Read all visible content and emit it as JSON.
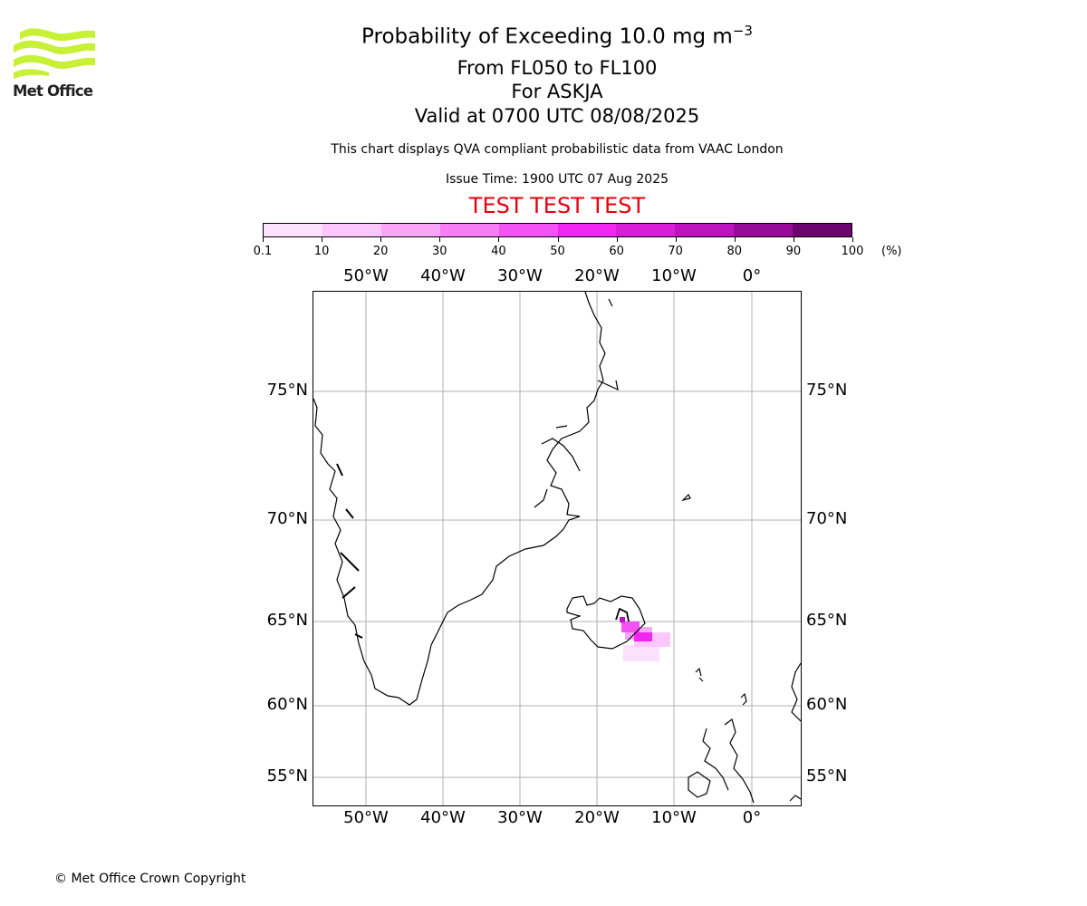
{
  "logo": {
    "text": "Met Office",
    "color": "#c6f135"
  },
  "header": {
    "title_main": "Probability of Exceeding 10.0 mg m",
    "title_exp": "−3",
    "flight_levels": "From FL050 to FL100",
    "volcano": "For ASKJA",
    "valid": "Valid at 0700 UTC 08/08/2025",
    "info": "This chart displays QVA compliant probabilistic data from VAAC London",
    "issue": "Issue Time: 1900 UTC 07 Aug 2025",
    "test_banner": "TEST TEST TEST"
  },
  "colorbar": {
    "ticks": [
      "0.1",
      "10",
      "20",
      "30",
      "40",
      "50",
      "60",
      "70",
      "80",
      "90",
      "100"
    ],
    "unit": "(%)",
    "colors": [
      "#fde0fd",
      "#fbc6fb",
      "#f9a6f9",
      "#f77ef7",
      "#f552f5",
      "#f126f1",
      "#d81ed8",
      "#bd12bd",
      "#980a98",
      "#6e046e"
    ]
  },
  "map": {
    "lon_labels": [
      "50°W",
      "40°W",
      "30°W",
      "20°W",
      "10°W",
      "0°"
    ],
    "lat_labels": [
      "75°N",
      "70°N",
      "65°N",
      "60°N",
      "55°N"
    ],
    "gridline_color": "#b0b0b0"
  },
  "footer": {
    "copyright": "© Met Office Crown Copyright"
  }
}
